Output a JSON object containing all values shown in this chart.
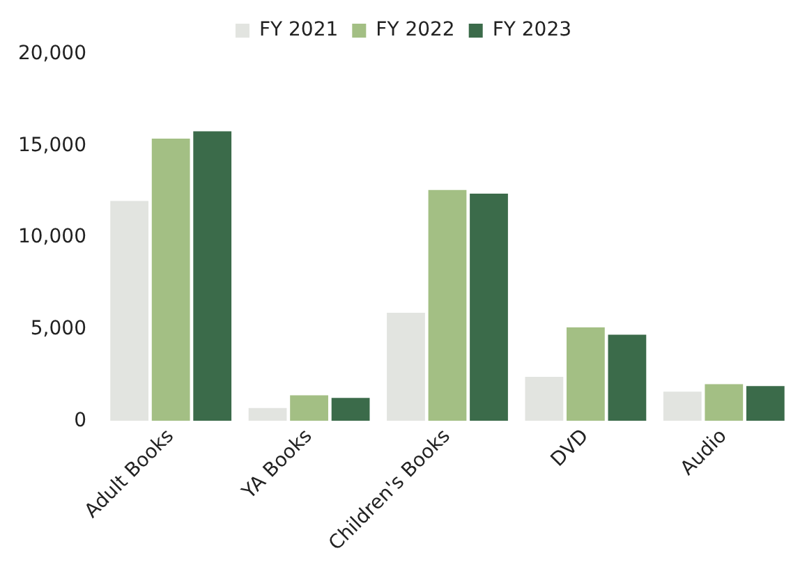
{
  "chart_data": {
    "type": "bar",
    "categories": [
      "Adult Books",
      "YA Books",
      "Children's Books",
      "DVD",
      "Audio"
    ],
    "series": [
      {
        "name": "FY 2021",
        "color": "#e2e4e0",
        "values": [
          12000,
          700,
          5900,
          2400,
          1600
        ]
      },
      {
        "name": "FY 2022",
        "color": "#a3bf84",
        "values": [
          15400,
          1400,
          12600,
          5100,
          2000
        ]
      },
      {
        "name": "FY 2023",
        "color": "#3b6b4a",
        "values": [
          15800,
          1250,
          12400,
          4700,
          1900
        ]
      }
    ],
    "ylim": [
      0,
      20000
    ],
    "yticks": [
      {
        "value": 0,
        "label": "0"
      },
      {
        "value": 5000,
        "label": "5,000"
      },
      {
        "value": 10000,
        "label": "10,000"
      },
      {
        "value": 15000,
        "label": "15,000"
      },
      {
        "value": 20000,
        "label": "20,000"
      }
    ],
    "grid": false,
    "legend": "top"
  }
}
